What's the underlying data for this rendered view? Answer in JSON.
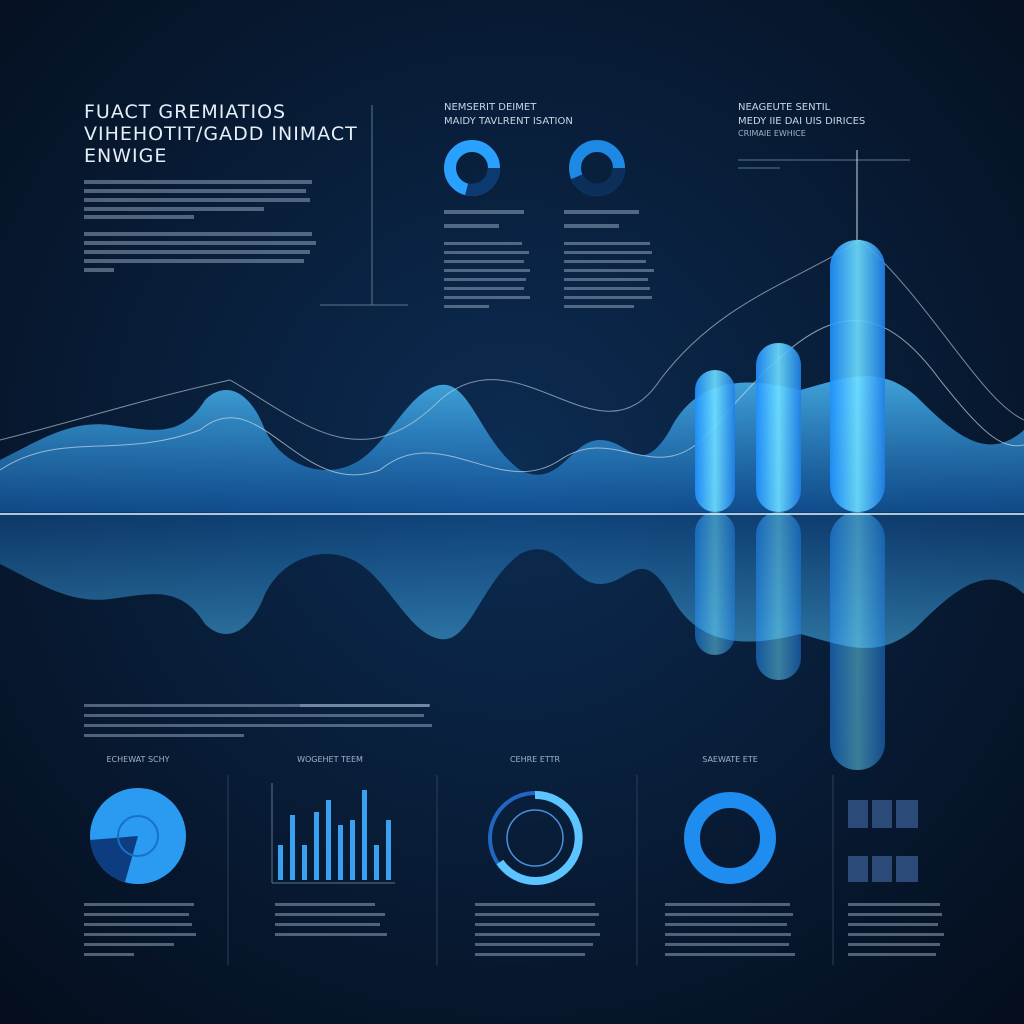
{
  "header": {
    "title": [
      "FUACT GREMIATIOS",
      "VIHEHOTIT/GADD INIMACT",
      "ENWIGE"
    ]
  },
  "panels": [
    {
      "title": "NEMSERIT DEIMET",
      "subtitle": "MAIDY TAVLRENT ISATION"
    },
    {
      "title": "NEAGEUTE SENTIL",
      "subtitle": "MEDY IIE DAI UIS DIRICES",
      "caption": "CRIMAIE EWHICE"
    }
  ],
  "bottom": {
    "labels": [
      "ECHEWAT SCHY",
      "WOGEHET TEEM",
      "CEHRE ETTR",
      "SAEWATE ETE"
    ]
  }
}
